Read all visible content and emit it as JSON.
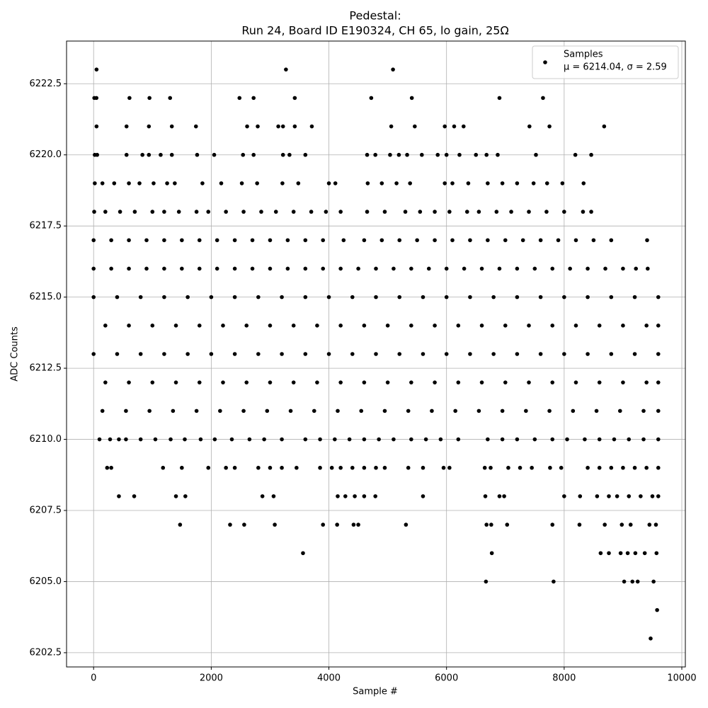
{
  "chart_data": {
    "type": "scatter",
    "title": "Pedestal:",
    "subtitle": "Run 24, Board ID E190324, CH 65, lo gain, 25Ω",
    "x_label": "Sample #",
    "y_label": "ADC Counts",
    "xlim": [
      -460,
      10060
    ],
    "ylim": [
      6202.0,
      6224.0
    ],
    "xticks": [
      0,
      2000,
      4000,
      6000,
      8000,
      10000
    ],
    "yticks": [
      6202.5,
      {
        "value": 6205.0,
        "label": "6205.0"
      },
      6207.5,
      {
        "value": 6210.0,
        "label": "6210.0"
      },
      6212.5,
      {
        "value": 6215.0,
        "label": "6215.0"
      },
      6217.5,
      {
        "value": 6220.0,
        "label": "6220.0"
      },
      6222.5
    ],
    "grid": true,
    "legend": "upper right",
    "legend_note": "μ = 6214.04, σ = 2.59",
    "series": [
      {
        "name": "Samples",
        "color": "#000000",
        "x": [
          50,
          3270,
          5090,
          12,
          48,
          610,
          950,
          1300,
          2480,
          2720,
          3420,
          4720,
          5410,
          6900,
          7640,
          50,
          560,
          940,
          1330,
          1740,
          2610,
          2790,
          3140,
          3220,
          3420,
          3710,
          5060,
          5460,
          5970,
          6130,
          6290,
          7410,
          7750,
          8680,
          20,
          60,
          560,
          830,
          940,
          1140,
          1330,
          1760,
          2050,
          2540,
          2720,
          3220,
          3330,
          3600,
          4650,
          4790,
          5040,
          5190,
          5330,
          5580,
          5850,
          6000,
          6220,
          6500,
          6680,
          6870,
          7520,
          8190,
          8460,
          20,
          150,
          350,
          600,
          780,
          1020,
          1250,
          1380,
          1850,
          2170,
          2520,
          2780,
          3210,
          3480,
          4000,
          4110,
          4660,
          4900,
          5150,
          5380,
          5970,
          6100,
          6370,
          6700,
          6950,
          7200,
          7480,
          7710,
          7970,
          8330,
          10,
          200,
          450,
          700,
          1000,
          1200,
          1450,
          1750,
          1950,
          2250,
          2550,
          2850,
          3100,
          3400,
          3700,
          3950,
          4200,
          4650,
          4950,
          5300,
          5550,
          5800,
          6050,
          6350,
          6550,
          6850,
          7100,
          7400,
          7700,
          8000,
          8320,
          8460,
          0,
          300,
          600,
          900,
          1200,
          1500,
          1800,
          2100,
          2400,
          2700,
          3000,
          3300,
          3600,
          3900,
          4250,
          4600,
          4900,
          5200,
          5500,
          5800,
          6100,
          6400,
          6700,
          7000,
          7300,
          7600,
          7900,
          8200,
          8500,
          8800,
          9410,
          0,
          300,
          600,
          900,
          1200,
          1500,
          1800,
          2100,
          2400,
          2700,
          3000,
          3300,
          3600,
          3900,
          4200,
          4500,
          4800,
          5100,
          5400,
          5700,
          6000,
          6300,
          6600,
          6900,
          7200,
          7500,
          7800,
          8100,
          8400,
          8700,
          9000,
          9220,
          9420,
          0,
          400,
          800,
          1200,
          1600,
          2000,
          2400,
          2800,
          3200,
          3600,
          4000,
          4400,
          4800,
          5200,
          5600,
          6000,
          6400,
          6800,
          7200,
          7600,
          8000,
          8400,
          8800,
          9200,
          9600,
          200,
          600,
          1000,
          1400,
          1800,
          2200,
          2600,
          3000,
          3400,
          3800,
          4200,
          4600,
          5000,
          5400,
          5800,
          6200,
          6600,
          7000,
          7400,
          7800,
          8200,
          8600,
          9000,
          9400,
          9600,
          0,
          400,
          800,
          1200,
          1600,
          2000,
          2400,
          2800,
          3200,
          3600,
          4000,
          4400,
          4800,
          5200,
          5600,
          6000,
          6400,
          6800,
          7200,
          7600,
          8000,
          8400,
          8800,
          9200,
          9600,
          200,
          600,
          1000,
          1400,
          1800,
          2200,
          2600,
          3000,
          3400,
          3800,
          4200,
          4600,
          5000,
          5400,
          5800,
          6200,
          6600,
          7000,
          7400,
          7800,
          8200,
          8600,
          9000,
          9400,
          9600,
          150,
          550,
          950,
          1350,
          1750,
          2150,
          2550,
          2950,
          3350,
          3750,
          4150,
          4550,
          4950,
          5350,
          5750,
          6150,
          6550,
          6950,
          7350,
          7750,
          8150,
          8550,
          8950,
          9350,
          9600,
          100,
          280,
          430,
          550,
          800,
          1050,
          1310,
          1550,
          1820,
          2060,
          2350,
          2650,
          2900,
          3200,
          3600,
          3850,
          4100,
          4350,
          4600,
          4850,
          5100,
          5400,
          5650,
          5900,
          6200,
          6700,
          6950,
          7200,
          7500,
          7800,
          8050,
          8350,
          8600,
          8850,
          9100,
          9350,
          9600,
          230,
          300,
          1180,
          1500,
          1950,
          2250,
          2400,
          2800,
          3000,
          3200,
          3450,
          3850,
          4050,
          4200,
          4400,
          4600,
          4800,
          4950,
          5350,
          5600,
          5950,
          6050,
          6650,
          6750,
          7050,
          7250,
          7450,
          7760,
          7950,
          8400,
          8600,
          8800,
          9000,
          9200,
          9400,
          9600,
          430,
          690,
          1400,
          1560,
          2870,
          3060,
          4150,
          4280,
          4440,
          4600,
          4790,
          5600,
          6660,
          6900,
          6980,
          8000,
          8270,
          8560,
          8760,
          8900,
          9100,
          9300,
          9500,
          9600,
          1470,
          2320,
          2560,
          3080,
          3900,
          4140,
          4420,
          4500,
          5310,
          6680,
          6760,
          7030,
          7800,
          8260,
          8690,
          8980,
          9130,
          9450,
          9560,
          3560,
          6770,
          8620,
          8760,
          8960,
          9080,
          9210,
          9370,
          9570,
          6670,
          7820,
          9020,
          9160,
          9250,
          9520,
          9580,
          9470
        ],
        "values": [
          6223,
          6223,
          6223,
          6222,
          6222,
          6222,
          6222,
          6222,
          6222,
          6222,
          6222,
          6222,
          6222,
          6222,
          6222,
          6221,
          6221,
          6221,
          6221,
          6221,
          6221,
          6221,
          6221,
          6221,
          6221,
          6221,
          6221,
          6221,
          6221,
          6221,
          6221,
          6221,
          6221,
          6221,
          6220,
          6220,
          6220,
          6220,
          6220,
          6220,
          6220,
          6220,
          6220,
          6220,
          6220,
          6220,
          6220,
          6220,
          6220,
          6220,
          6220,
          6220,
          6220,
          6220,
          6220,
          6220,
          6220,
          6220,
          6220,
          6220,
          6220,
          6220,
          6220,
          6219,
          6219,
          6219,
          6219,
          6219,
          6219,
          6219,
          6219,
          6219,
          6219,
          6219,
          6219,
          6219,
          6219,
          6219,
          6219,
          6219,
          6219,
          6219,
          6219,
          6219,
          6219,
          6219,
          6219,
          6219,
          6219,
          6219,
          6219,
          6219,
          6219,
          6218,
          6218,
          6218,
          6218,
          6218,
          6218,
          6218,
          6218,
          6218,
          6218,
          6218,
          6218,
          6218,
          6218,
          6218,
          6218,
          6218,
          6218,
          6218,
          6218,
          6218,
          6218,
          6218,
          6218,
          6218,
          6218,
          6218,
          6218,
          6218,
          6218,
          6218,
          6218,
          6217,
          6217,
          6217,
          6217,
          6217,
          6217,
          6217,
          6217,
          6217,
          6217,
          6217,
          6217,
          6217,
          6217,
          6217,
          6217,
          6217,
          6217,
          6217,
          6217,
          6217,
          6217,
          6217,
          6217,
          6217,
          6217,
          6217,
          6217,
          6217,
          6217,
          6217,
          6216,
          6216,
          6216,
          6216,
          6216,
          6216,
          6216,
          6216,
          6216,
          6216,
          6216,
          6216,
          6216,
          6216,
          6216,
          6216,
          6216,
          6216,
          6216,
          6216,
          6216,
          6216,
          6216,
          6216,
          6216,
          6216,
          6216,
          6216,
          6216,
          6216,
          6216,
          6216,
          6216,
          6215,
          6215,
          6215,
          6215,
          6215,
          6215,
          6215,
          6215,
          6215,
          6215,
          6215,
          6215,
          6215,
          6215,
          6215,
          6215,
          6215,
          6215,
          6215,
          6215,
          6215,
          6215,
          6215,
          6215,
          6215,
          6214,
          6214,
          6214,
          6214,
          6214,
          6214,
          6214,
          6214,
          6214,
          6214,
          6214,
          6214,
          6214,
          6214,
          6214,
          6214,
          6214,
          6214,
          6214,
          6214,
          6214,
          6214,
          6214,
          6214,
          6214,
          6213,
          6213,
          6213,
          6213,
          6213,
          6213,
          6213,
          6213,
          6213,
          6213,
          6213,
          6213,
          6213,
          6213,
          6213,
          6213,
          6213,
          6213,
          6213,
          6213,
          6213,
          6213,
          6213,
          6213,
          6213,
          6212,
          6212,
          6212,
          6212,
          6212,
          6212,
          6212,
          6212,
          6212,
          6212,
          6212,
          6212,
          6212,
          6212,
          6212,
          6212,
          6212,
          6212,
          6212,
          6212,
          6212,
          6212,
          6212,
          6212,
          6212,
          6211,
          6211,
          6211,
          6211,
          6211,
          6211,
          6211,
          6211,
          6211,
          6211,
          6211,
          6211,
          6211,
          6211,
          6211,
          6211,
          6211,
          6211,
          6211,
          6211,
          6211,
          6211,
          6211,
          6211,
          6211,
          6210,
          6210,
          6210,
          6210,
          6210,
          6210,
          6210,
          6210,
          6210,
          6210,
          6210,
          6210,
          6210,
          6210,
          6210,
          6210,
          6210,
          6210,
          6210,
          6210,
          6210,
          6210,
          6210,
          6210,
          6210,
          6210,
          6210,
          6210,
          6210,
          6210,
          6210,
          6210,
          6210,
          6210,
          6210,
          6210,
          6210,
          6209,
          6209,
          6209,
          6209,
          6209,
          6209,
          6209,
          6209,
          6209,
          6209,
          6209,
          6209,
          6209,
          6209,
          6209,
          6209,
          6209,
          6209,
          6209,
          6209,
          6209,
          6209,
          6209,
          6209,
          6209,
          6209,
          6209,
          6209,
          6209,
          6209,
          6209,
          6209,
          6209,
          6209,
          6209,
          6209,
          6208,
          6208,
          6208,
          6208,
          6208,
          6208,
          6208,
          6208,
          6208,
          6208,
          6208,
          6208,
          6208,
          6208,
          6208,
          6208,
          6208,
          6208,
          6208,
          6208,
          6208,
          6208,
          6208,
          6208,
          6207,
          6207,
          6207,
          6207,
          6207,
          6207,
          6207,
          6207,
          6207,
          6207,
          6207,
          6207,
          6207,
          6207,
          6207,
          6207,
          6207,
          6207,
          6207,
          6206,
          6206,
          6206,
          6206,
          6206,
          6206,
          6206,
          6206,
          6206,
          6205,
          6205,
          6205,
          6205,
          6205,
          6205,
          6204,
          6203
        ]
      }
    ]
  }
}
